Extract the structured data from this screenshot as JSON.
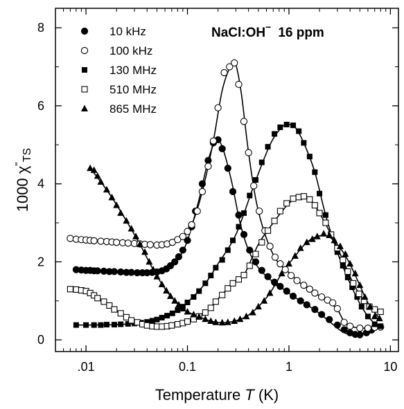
{
  "chart_data": {
    "type": "scatter",
    "title": "",
    "annotation": {
      "main": "NaCl:OH",
      "sup": "−",
      "rest": "16 ppm"
    },
    "xlabel": {
      "prefix": "Temperature ",
      "var": "T",
      "suffix": " (K)"
    },
    "ylabel": {
      "prefix": "1000 χ",
      "sup": "\"",
      "sub": "TS"
    },
    "x_scale": "log",
    "xlim": [
      0.005,
      12
    ],
    "ylim": [
      -0.3,
      8.5
    ],
    "x_ticks": [
      0.01,
      0.1,
      1,
      10
    ],
    "x_tick_labels": [
      ".01",
      "0.1",
      "1",
      "10"
    ],
    "y_ticks": [
      0,
      2,
      4,
      6,
      8
    ],
    "y_tick_labels": [
      "0",
      "2",
      "4",
      "6",
      "8"
    ],
    "grid": false,
    "legend_position": "top-left",
    "series": [
      {
        "name": "10 kHz",
        "marker": "filled-circle",
        "x": [
          0.008,
          0.009,
          0.01,
          0.011,
          0.012,
          0.013,
          0.015,
          0.017,
          0.019,
          0.022,
          0.025,
          0.028,
          0.032,
          0.036,
          0.04,
          0.045,
          0.05,
          0.056,
          0.062,
          0.068,
          0.075,
          0.082,
          0.09,
          0.1,
          0.11,
          0.12,
          0.14,
          0.16,
          0.18,
          0.2,
          0.22,
          0.25,
          0.28,
          0.32,
          0.36,
          0.41,
          0.47,
          0.54,
          0.62,
          0.72,
          0.82,
          0.95,
          1.1,
          1.3,
          1.5,
          1.8,
          2.1,
          2.5,
          3.0,
          3.5,
          4.0,
          4.5,
          5.0,
          5.8,
          6.5
        ],
        "y": [
          1.8,
          1.79,
          1.78,
          1.78,
          1.77,
          1.77,
          1.76,
          1.75,
          1.75,
          1.74,
          1.73,
          1.73,
          1.72,
          1.72,
          1.72,
          1.73,
          1.74,
          1.77,
          1.82,
          1.9,
          2.0,
          2.13,
          2.3,
          2.55,
          2.9,
          3.3,
          4.0,
          4.6,
          5.05,
          5.13,
          4.9,
          4.4,
          3.8,
          3.2,
          2.7,
          2.3,
          2.0,
          1.78,
          1.62,
          1.48,
          1.37,
          1.25,
          1.12,
          1.0,
          0.9,
          0.78,
          0.65,
          0.52,
          0.38,
          0.26,
          0.18,
          0.14,
          0.13,
          0.18,
          0.25
        ]
      },
      {
        "name": "100 kHz",
        "marker": "open-circle",
        "x": [
          0.007,
          0.008,
          0.009,
          0.01,
          0.011,
          0.012,
          0.014,
          0.016,
          0.018,
          0.02,
          0.023,
          0.026,
          0.03,
          0.034,
          0.038,
          0.043,
          0.05,
          0.056,
          0.063,
          0.071,
          0.08,
          0.09,
          0.1,
          0.11,
          0.125,
          0.14,
          0.16,
          0.18,
          0.2,
          0.23,
          0.26,
          0.29,
          0.32,
          0.36,
          0.4,
          0.45,
          0.51,
          0.58,
          0.65,
          0.73,
          0.82,
          0.92,
          1.05,
          1.2,
          1.4,
          1.6,
          1.8,
          2.1,
          2.4,
          2.7,
          3.0,
          3.5,
          4.0,
          5.0,
          6.0,
          7.0,
          8.0
        ],
        "y": [
          2.6,
          2.58,
          2.57,
          2.56,
          2.55,
          2.54,
          2.53,
          2.52,
          2.51,
          2.5,
          2.49,
          2.48,
          2.47,
          2.46,
          2.45,
          2.44,
          2.43,
          2.44,
          2.46,
          2.5,
          2.57,
          2.65,
          2.78,
          2.95,
          3.3,
          3.8,
          4.45,
          5.1,
          5.95,
          6.85,
          7.0,
          7.1,
          6.55,
          5.6,
          4.8,
          3.95,
          3.3,
          2.8,
          2.4,
          2.12,
          1.95,
          1.8,
          1.65,
          1.52,
          1.4,
          1.3,
          1.2,
          1.1,
          1.02,
          0.95,
          0.8,
          0.45,
          0.35,
          0.3,
          0.3,
          0.32,
          0.33
        ]
      },
      {
        "name": "130 MHz",
        "marker": "filled-square",
        "x": [
          0.008,
          0.01,
          0.012,
          0.014,
          0.016,
          0.019,
          0.022,
          0.026,
          0.03,
          0.035,
          0.04,
          0.045,
          0.05,
          0.056,
          0.063,
          0.071,
          0.08,
          0.09,
          0.1,
          0.115,
          0.13,
          0.15,
          0.17,
          0.19,
          0.22,
          0.25,
          0.28,
          0.32,
          0.36,
          0.41,
          0.47,
          0.54,
          0.62,
          0.72,
          0.82,
          0.95,
          1.1,
          1.25,
          1.4,
          1.6,
          1.8,
          2.0,
          2.3,
          2.6,
          3.0,
          3.4,
          3.8,
          4.2,
          4.7,
          5.2,
          6.0,
          7.0,
          8.0
        ],
        "y": [
          0.38,
          0.38,
          0.38,
          0.38,
          0.39,
          0.39,
          0.4,
          0.41,
          0.42,
          0.44,
          0.46,
          0.49,
          0.52,
          0.57,
          0.62,
          0.68,
          0.76,
          0.85,
          0.96,
          1.1,
          1.25,
          1.45,
          1.65,
          1.85,
          2.05,
          2.3,
          2.55,
          2.9,
          3.25,
          3.7,
          4.1,
          4.55,
          4.95,
          5.28,
          5.45,
          5.52,
          5.5,
          5.35,
          5.05,
          4.7,
          4.3,
          3.75,
          3.2,
          2.7,
          2.25,
          1.9,
          1.6,
          1.35,
          1.1,
          0.85,
          0.6,
          0.4,
          0.35
        ]
      },
      {
        "name": "510 MHz",
        "marker": "open-square",
        "x": [
          0.007,
          0.008,
          0.009,
          0.01,
          0.011,
          0.012,
          0.013,
          0.015,
          0.017,
          0.019,
          0.022,
          0.025,
          0.028,
          0.032,
          0.036,
          0.04,
          0.045,
          0.05,
          0.056,
          0.063,
          0.07,
          0.08,
          0.09,
          0.1,
          0.115,
          0.13,
          0.15,
          0.17,
          0.19,
          0.22,
          0.25,
          0.28,
          0.32,
          0.36,
          0.41,
          0.47,
          0.54,
          0.62,
          0.72,
          0.82,
          0.95,
          1.1,
          1.25,
          1.4,
          1.6,
          1.8,
          2.0,
          2.3,
          2.6,
          3.0,
          3.4,
          3.8,
          4.3,
          4.9,
          5.5,
          6.2,
          7.0,
          8.0
        ],
        "y": [
          1.3,
          1.29,
          1.27,
          1.25,
          1.2,
          1.14,
          1.07,
          0.98,
          0.88,
          0.78,
          0.68,
          0.58,
          0.5,
          0.45,
          0.4,
          0.37,
          0.35,
          0.34,
          0.34,
          0.35,
          0.37,
          0.4,
          0.43,
          0.47,
          0.53,
          0.6,
          0.7,
          0.82,
          0.98,
          1.15,
          1.32,
          1.45,
          1.55,
          1.66,
          1.9,
          2.2,
          2.5,
          2.8,
          3.05,
          3.3,
          3.5,
          3.62,
          3.66,
          3.68,
          3.6,
          3.45,
          3.25,
          3.0,
          2.7,
          2.35,
          2.05,
          1.75,
          1.45,
          1.18,
          1.0,
          0.85,
          0.78,
          0.72
        ]
      },
      {
        "name": "865 MHz",
        "marker": "filled-triangle",
        "x": [
          0.011,
          0.012,
          0.013,
          0.014,
          0.016,
          0.018,
          0.02,
          0.022,
          0.025,
          0.028,
          0.031,
          0.034,
          0.038,
          0.042,
          0.046,
          0.05,
          0.056,
          0.062,
          0.068,
          0.075,
          0.082,
          0.09,
          0.1,
          0.115,
          0.13,
          0.15,
          0.17,
          0.19,
          0.22,
          0.25,
          0.29,
          0.33,
          0.38,
          0.44,
          0.5,
          0.57,
          0.65,
          0.75,
          0.85,
          1.0,
          1.15,
          1.3,
          1.5,
          1.7,
          1.9,
          2.2,
          2.5,
          2.8,
          3.2,
          3.6,
          4.0,
          4.5,
          5.0,
          5.6,
          6.3,
          7.0,
          7.8
        ],
        "y": [
          4.4,
          4.35,
          4.2,
          4.05,
          3.85,
          3.65,
          3.45,
          3.25,
          3.05,
          2.85,
          2.65,
          2.45,
          2.25,
          2.0,
          1.8,
          1.62,
          1.42,
          1.26,
          1.12,
          1.0,
          0.9,
          0.8,
          0.72,
          0.65,
          0.59,
          0.53,
          0.48,
          0.45,
          0.44,
          0.45,
          0.48,
          0.53,
          0.6,
          0.7,
          0.85,
          1.0,
          1.2,
          1.45,
          1.7,
          1.95,
          2.15,
          2.35,
          2.5,
          2.58,
          2.65,
          2.72,
          2.68,
          2.55,
          2.4,
          2.2,
          1.95,
          1.7,
          1.4,
          1.1,
          0.85,
          0.6,
          0.55
        ]
      }
    ],
    "fit_curves": [
      {
        "series": "10 kHz",
        "x": [
          0.008,
          0.02,
          0.04,
          0.06,
          0.08,
          0.1,
          0.13,
          0.16,
          0.19,
          0.22,
          0.27,
          0.33,
          0.4,
          0.5,
          0.65,
          0.85,
          1.1,
          1.5,
          2.0,
          2.7,
          3.4,
          4.2,
          5.2,
          6.5
        ],
        "y": [
          1.8,
          1.75,
          1.72,
          1.78,
          2.05,
          2.55,
          3.6,
          4.6,
          5.1,
          4.95,
          4.1,
          3.0,
          2.3,
          1.85,
          1.55,
          1.33,
          1.12,
          0.9,
          0.68,
          0.4,
          0.2,
          0.13,
          0.16,
          0.25
        ]
      },
      {
        "series": "100 kHz",
        "x": [
          0.007,
          0.02,
          0.05,
          0.07,
          0.09,
          0.11,
          0.14,
          0.18,
          0.22,
          0.27,
          0.3,
          0.34,
          0.4,
          0.48,
          0.6,
          0.75,
          0.95,
          1.3,
          1.8,
          2.4,
          3.0,
          3.6,
          4.5,
          6.0,
          8.0
        ],
        "y": [
          2.6,
          2.5,
          2.43,
          2.48,
          2.65,
          2.95,
          3.8,
          5.1,
          6.4,
          7.05,
          7.05,
          6.3,
          4.8,
          3.5,
          2.6,
          2.05,
          1.78,
          1.45,
          1.2,
          1.0,
          0.78,
          0.42,
          0.32,
          0.3,
          0.33
        ]
      },
      {
        "series": "130 MHz",
        "x": [
          0.008,
          0.02,
          0.04,
          0.06,
          0.08,
          0.1,
          0.15,
          0.2,
          0.3,
          0.45,
          0.65,
          0.85,
          1.0,
          1.15,
          1.4,
          1.8,
          2.3,
          3.0,
          4.0,
          5.2,
          6.5,
          8.0
        ],
        "y": [
          0.38,
          0.39,
          0.46,
          0.6,
          0.76,
          0.96,
          1.45,
          1.95,
          2.7,
          3.95,
          5.0,
          5.45,
          5.52,
          5.45,
          5.05,
          4.3,
          3.2,
          2.25,
          1.45,
          0.85,
          0.5,
          0.35
        ]
      },
      {
        "series": "510 MHz",
        "x": [
          0.007,
          0.01,
          0.013,
          0.018,
          0.025,
          0.035,
          0.05,
          0.07,
          0.1,
          0.15,
          0.2,
          0.28,
          0.36,
          0.5,
          0.7,
          1.0,
          1.3,
          1.6,
          2.0,
          2.6,
          3.4,
          4.3,
          5.5,
          7.0,
          8.0
        ],
        "y": [
          1.3,
          1.25,
          1.07,
          0.82,
          0.58,
          0.42,
          0.34,
          0.37,
          0.47,
          0.7,
          1.05,
          1.45,
          1.66,
          2.45,
          3.0,
          3.5,
          3.66,
          3.62,
          3.25,
          2.7,
          2.05,
          1.45,
          1.0,
          0.78,
          0.72
        ]
      },
      {
        "series": "865 MHz",
        "x": [
          0.011,
          0.014,
          0.018,
          0.025,
          0.034,
          0.046,
          0.062,
          0.082,
          0.1,
          0.13,
          0.17,
          0.22,
          0.29,
          0.38,
          0.5,
          0.65,
          0.85,
          1.15,
          1.5,
          1.9,
          2.4,
          3.0,
          3.8,
          4.8,
          6.0,
          7.8
        ],
        "y": [
          4.4,
          4.05,
          3.65,
          3.05,
          2.45,
          1.8,
          1.26,
          0.9,
          0.72,
          0.59,
          0.48,
          0.44,
          0.48,
          0.6,
          0.85,
          1.2,
          1.7,
          2.15,
          2.5,
          2.65,
          2.66,
          2.45,
          2.05,
          1.5,
          0.95,
          0.55
        ]
      }
    ]
  }
}
